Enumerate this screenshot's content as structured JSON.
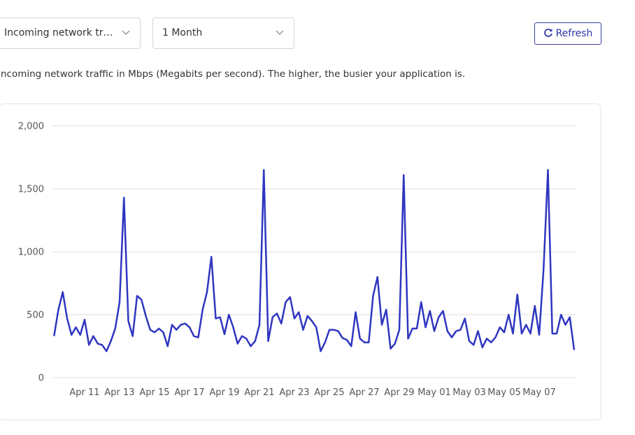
{
  "controls": {
    "metric_select": "Incoming network tr…",
    "period_select": "1 Month",
    "refresh": "Refresh"
  },
  "description": "Incoming network traffic in Mbps (Megabits per second). The higher, the busier your application is.",
  "chart_data": {
    "type": "line",
    "categories": [
      null,
      null,
      null,
      null,
      null,
      null,
      null,
      "Apr 11",
      null,
      null,
      null,
      null,
      null,
      null,
      null,
      "Apr 13",
      null,
      null,
      null,
      null,
      null,
      null,
      null,
      "Apr 15",
      null,
      null,
      null,
      null,
      null,
      null,
      null,
      "Apr 17",
      null,
      null,
      null,
      null,
      null,
      null,
      null,
      "Apr 19",
      null,
      null,
      null,
      null,
      null,
      null,
      null,
      "Apr 21",
      null,
      null,
      null,
      null,
      null,
      null,
      null,
      "Apr 23",
      null,
      null,
      null,
      null,
      null,
      null,
      null,
      "Apr 25",
      null,
      null,
      null,
      null,
      null,
      null,
      null,
      "Apr 27",
      null,
      null,
      null,
      null,
      null,
      null,
      null,
      "Apr 29",
      null,
      null,
      null,
      null,
      null,
      null,
      null,
      "May 01",
      null,
      null,
      null,
      null,
      null,
      null,
      null,
      "May 03",
      null,
      null,
      null,
      null,
      null,
      null,
      null,
      "May 05",
      null,
      null,
      null,
      null,
      null,
      null,
      null,
      "May 07",
      null,
      null,
      null,
      null,
      null,
      null,
      null,
      null
    ],
    "series": [
      {
        "color": "#2f36c0",
        "values": [
          330,
          540,
          680,
          470,
          340,
          400,
          340,
          460,
          260,
          330,
          270,
          260,
          210,
          290,
          390,
          600,
          1430,
          450,
          330,
          650,
          620,
          490,
          380,
          360,
          390,
          360,
          250,
          420,
          380,
          420,
          430,
          400,
          330,
          320,
          540,
          680,
          960,
          470,
          480,
          345,
          500,
          400,
          270,
          330,
          310,
          250,
          290,
          420,
          1650,
          290,
          480,
          510,
          430,
          600,
          640,
          470,
          520,
          380,
          490,
          450,
          400,
          210,
          280,
          380,
          380,
          370,
          315,
          300,
          250,
          520,
          310,
          280,
          280,
          650,
          800,
          420,
          540,
          230,
          270,
          380,
          1610,
          310,
          390,
          390,
          600,
          400,
          530,
          370,
          480,
          530,
          370,
          320,
          370,
          380,
          470,
          290,
          260,
          370,
          240,
          310,
          280,
          320,
          400,
          360,
          500,
          350,
          660,
          350,
          420,
          350,
          570,
          340,
          860,
          1650,
          350,
          350,
          500,
          420,
          480,
          220
        ]
      }
    ],
    "ylim": [
      0,
      2000
    ],
    "yticks": [
      0,
      500,
      {
        "value": 1000,
        "label": "1,000"
      },
      {
        "value": 1500,
        "label": "1,500"
      },
      {
        "value": 2000,
        "label": "2,000"
      }
    ],
    "grid": true
  }
}
